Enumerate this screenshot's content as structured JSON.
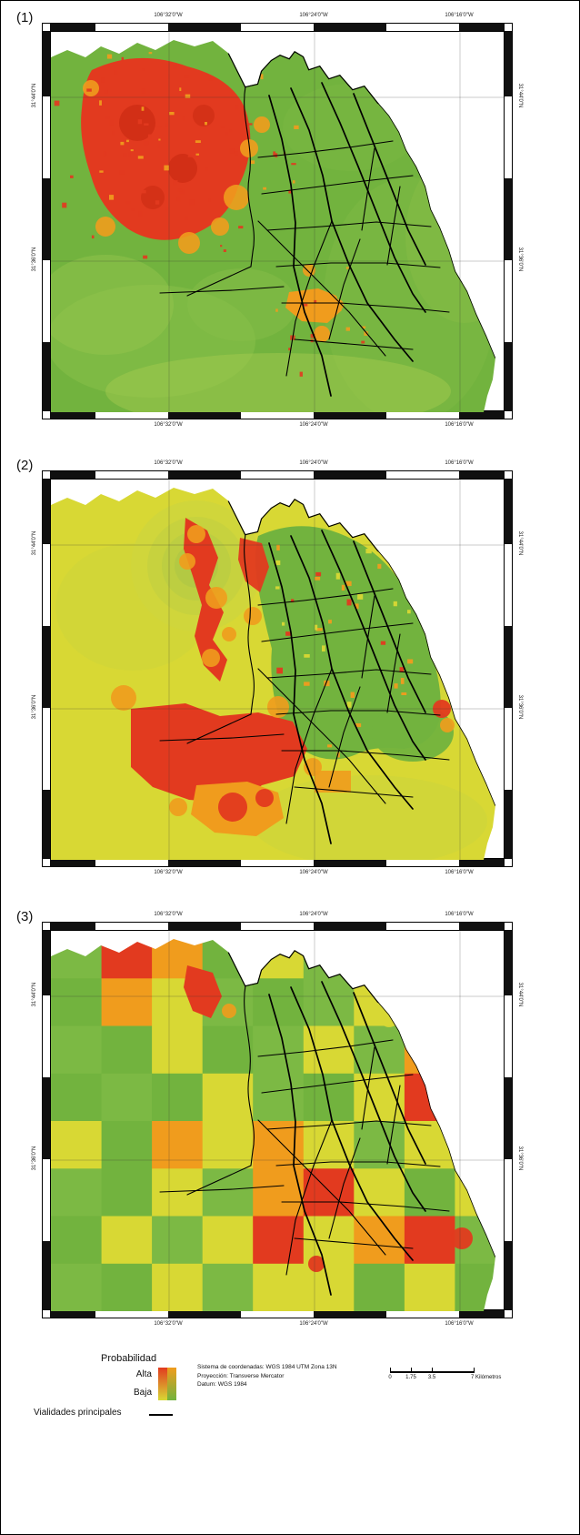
{
  "panels": [
    {
      "number": "(1)",
      "coords_top": [
        "106°32'0\"W",
        "106°24'0\"W",
        "106°16'0\"W"
      ],
      "coords_bottom": [
        "106°32'0\"W",
        "106°24'0\"W",
        "106°16'0\"W"
      ],
      "coords_left": [
        "31°44'0\"N",
        "31°36'0\"N"
      ],
      "coords_right": [
        "31°44'0\"N",
        "31°36'0\"N"
      ]
    },
    {
      "number": "(2)",
      "coords_top": [
        "106°32'0\"W",
        "106°24'0\"W",
        "106°16'0\"W"
      ],
      "coords_bottom": [
        "106°32'0\"W",
        "106°24'0\"W",
        "106°16'0\"W"
      ],
      "coords_left": [
        "31°44'0\"N",
        "31°36'0\"N"
      ],
      "coords_right": [
        "31°44'0\"N",
        "31°36'0\"N"
      ]
    },
    {
      "number": "(3)",
      "coords_top": [
        "106°32'0\"W",
        "106°24'0\"W",
        "106°16'0\"W"
      ],
      "coords_bottom": [
        "106°32'0\"W",
        "106°24'0\"W",
        "106°16'0\"W"
      ],
      "coords_left": [
        "31°44'0\"N",
        "31°36'0\"N"
      ],
      "coords_right": [
        "31°44'0\"N",
        "31°36'0\"N"
      ]
    }
  ],
  "legend": {
    "title": "Probabilidad",
    "high_label": "Alta",
    "low_label": "Baja",
    "roads_label": "Vialidades principales",
    "ramp_colors": [
      "#e23a1f",
      "#f09c1d",
      "#d8d834",
      "#72b33e"
    ],
    "road_color": "#000000"
  },
  "metadata": {
    "lines": [
      "Sistema de coordenadas: WGS 1984 UTM Zona 13N",
      "Proyección: Transverse Mercator",
      "Datum: WGS 1984"
    ]
  },
  "scalebar": {
    "labels": [
      "0",
      "1.75",
      "3.5",
      "7 Kilómetros"
    ]
  }
}
